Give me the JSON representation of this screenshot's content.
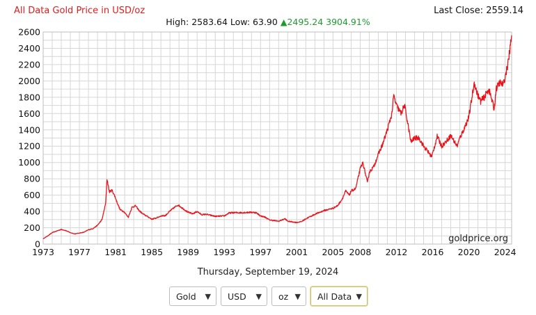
{
  "header": {
    "title": "All Data Gold Price in USD/oz",
    "last_close_label": "Last Close:",
    "last_close_value": "2559.14",
    "high_label": "High:",
    "high_value": "2583.64",
    "low_label": "Low:",
    "low_value": "63.90",
    "change_arrow": "▲",
    "change_value": "2495.24",
    "change_percent": "3904.91%"
  },
  "date": "Thursday, September 19, 2024",
  "controls": {
    "metal": "Gold",
    "currency": "USD",
    "unit": "oz",
    "range": "All Data"
  },
  "chart_data": {
    "type": "line",
    "title": "All Data Gold Price in USD/oz",
    "xlabel": "",
    "ylabel": "",
    "xlim": [
      1973,
      2024.72
    ],
    "ylim": [
      0,
      2600
    ],
    "x_ticks": [
      "1973",
      "1977",
      "1981",
      "1985",
      "1989",
      "1993",
      "1997",
      "2001",
      "2005",
      "2008",
      "2012",
      "2016",
      "2020",
      "2024"
    ],
    "y_ticks": [
      0,
      200,
      400,
      600,
      800,
      1000,
      1200,
      1400,
      1600,
      1800,
      2000,
      2200,
      2400,
      2600
    ],
    "grid": true,
    "watermark": "goldprice.org",
    "series": [
      {
        "name": "Gold USD/oz",
        "color": "#e8141b",
        "x": [
          1973.0,
          1973.5,
          1974.0,
          1974.5,
          1975.0,
          1975.5,
          1976.0,
          1976.5,
          1977.0,
          1977.5,
          1978.0,
          1978.5,
          1979.0,
          1979.5,
          1979.9,
          1980.05,
          1980.3,
          1980.6,
          1980.9,
          1981.2,
          1981.5,
          1981.9,
          1982.4,
          1982.8,
          1983.2,
          1983.6,
          1984.0,
          1984.5,
          1985.0,
          1985.5,
          1986.0,
          1986.5,
          1987.0,
          1987.5,
          1987.9,
          1988.5,
          1989.0,
          1989.5,
          1990.0,
          1990.5,
          1991.0,
          1992.0,
          1993.0,
          1993.5,
          1994.0,
          1995.0,
          1996.0,
          1996.5,
          1997.0,
          1997.5,
          1998.0,
          1999.0,
          1999.7,
          2000.0,
          2001.0,
          2001.5,
          2002.0,
          2003.0,
          2004.0,
          2005.0,
          2005.5,
          2006.0,
          2006.4,
          2006.8,
          2007.0,
          2007.5,
          2008.0,
          2008.3,
          2008.8,
          2009.0,
          2009.5,
          2010.0,
          2010.5,
          2011.0,
          2011.5,
          2011.7,
          2012.0,
          2012.5,
          2012.9,
          2013.3,
          2013.6,
          2014.0,
          2014.5,
          2015.0,
          2015.5,
          2015.9,
          2016.5,
          2017.0,
          2017.5,
          2018.0,
          2018.7,
          2019.0,
          2019.5,
          2020.0,
          2020.6,
          2020.9,
          2021.3,
          2021.7,
          2022.2,
          2022.5,
          2022.8,
          2023.0,
          2023.4,
          2023.8,
          2024.0,
          2024.3,
          2024.55,
          2024.72
        ],
        "values": [
          65,
          100,
          140,
          160,
          180,
          165,
          140,
          125,
          135,
          145,
          175,
          190,
          230,
          300,
          500,
          800,
          640,
          660,
          590,
          500,
          420,
          400,
          330,
          450,
          470,
          410,
          370,
          340,
          305,
          320,
          345,
          350,
          405,
          450,
          480,
          430,
          390,
          370,
          400,
          360,
          365,
          340,
          345,
          380,
          385,
          385,
          390,
          385,
          345,
          330,
          295,
          280,
          310,
          280,
          265,
          275,
          310,
          365,
          410,
          440,
          470,
          550,
          650,
          600,
          650,
          680,
          920,
          1000,
          750,
          880,
          950,
          1100,
          1230,
          1400,
          1600,
          1820,
          1700,
          1600,
          1700,
          1450,
          1250,
          1300,
          1300,
          1200,
          1130,
          1070,
          1320,
          1200,
          1260,
          1330,
          1200,
          1300,
          1420,
          1560,
          1980,
          1850,
          1750,
          1800,
          1900,
          1780,
          1650,
          1900,
          1980,
          1950,
          2050,
          2200,
          2400,
          2559
        ]
      }
    ]
  }
}
